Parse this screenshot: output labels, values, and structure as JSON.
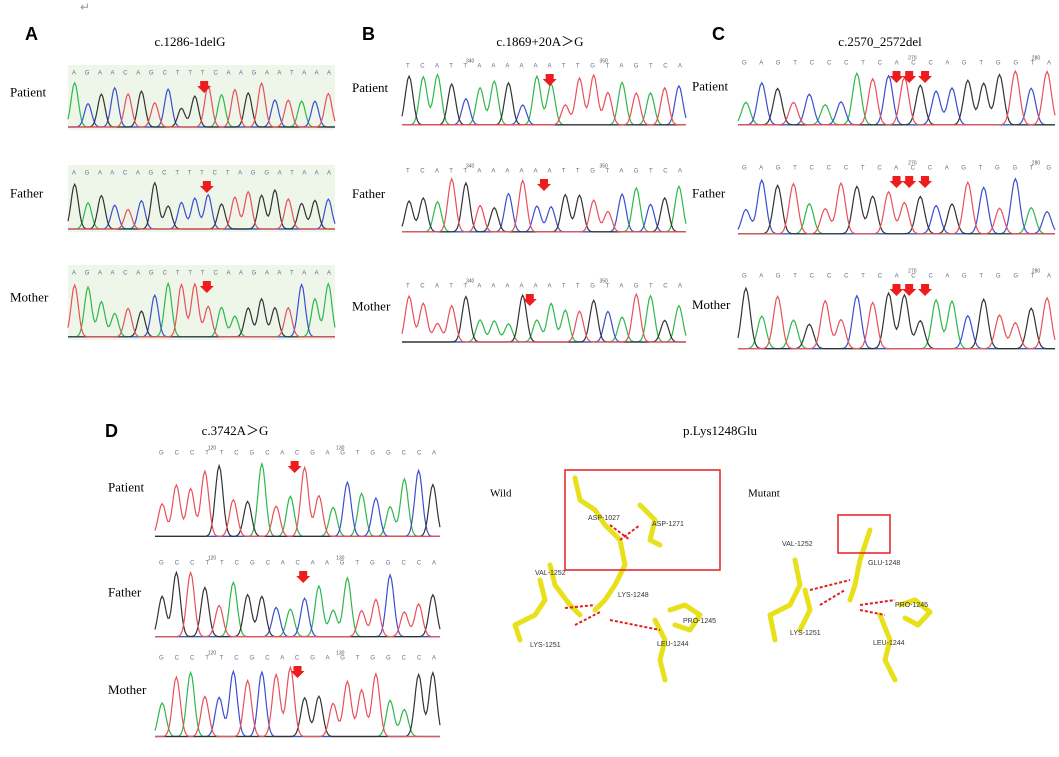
{
  "mark": "↵",
  "panels": [
    {
      "label": "A",
      "title": "c.1286-1delG",
      "rows": [
        {
          "label": "Patient",
          "sequence": "A G A A C A G C T T T C A A G A A T A A A"
        },
        {
          "label": "Father",
          "sequence": "A G A A C A G C T T T C T A G G A T A A A"
        },
        {
          "label": "Mother",
          "sequence": "A G A A C A G C T T T C A A G A A T A A A"
        }
      ]
    },
    {
      "label": "B",
      "title": "c.1869+20A＞G",
      "rows": [
        {
          "label": "Patient",
          "sequence": "T C A T T A A A A A A T T G T A G T C A",
          "ticks": [
            "340",
            "350"
          ]
        },
        {
          "label": "Father",
          "sequence": "T C A T T A A A A A A T T G T A G T C A",
          "ticks": [
            "340",
            "350"
          ]
        },
        {
          "label": "Mother",
          "sequence": "T C A T T A A A A A A T T G T A G T C A",
          "ticks": [
            "340",
            "350"
          ]
        }
      ]
    },
    {
      "label": "C",
      "title": "c.2570_2572del",
      "rows": [
        {
          "label": "Patient",
          "sequence": "G A G T C C C T C A C C A G T G G T A",
          "ticks": [
            "270",
            "280"
          ]
        },
        {
          "label": "Father",
          "sequence": "G A G T C C C T C A C C A G T G G T G",
          "ticks": [
            "270",
            "280"
          ]
        },
        {
          "label": "Mother",
          "sequence": "G A G T C C C T C A C C A G T G G T A",
          "ticks": [
            "270",
            "280"
          ]
        }
      ]
    },
    {
      "label": "D",
      "title": "c.3742A＞G",
      "rows": [
        {
          "label": "Patient",
          "sequence": "G C C T T C G C A C G A G T G G C C A",
          "ticks": [
            "120",
            "130"
          ]
        },
        {
          "label": "Father",
          "sequence": "G C C T T C G C A C A A G T G G C C A",
          "ticks": [
            "120",
            "130"
          ]
        },
        {
          "label": "Mother",
          "sequence": "G C C T T C G C A C G A G T G G C C A",
          "ticks": [
            "120",
            "130"
          ]
        }
      ]
    }
  ],
  "structure": {
    "title": "p.Lys1248Glu",
    "wild": {
      "label": "Wild",
      "residues": [
        "ASP-1027",
        "ASP-1271",
        "VAL-1252",
        "LYS-1248",
        "PRO-1245",
        "LEU-1244",
        "LYS-1251"
      ]
    },
    "mutant": {
      "label": "Mutant",
      "residues": [
        "VAL-1252",
        "GLU-1248",
        "PRO-1245",
        "LYS-1251",
        "LEU-1244"
      ]
    }
  }
}
